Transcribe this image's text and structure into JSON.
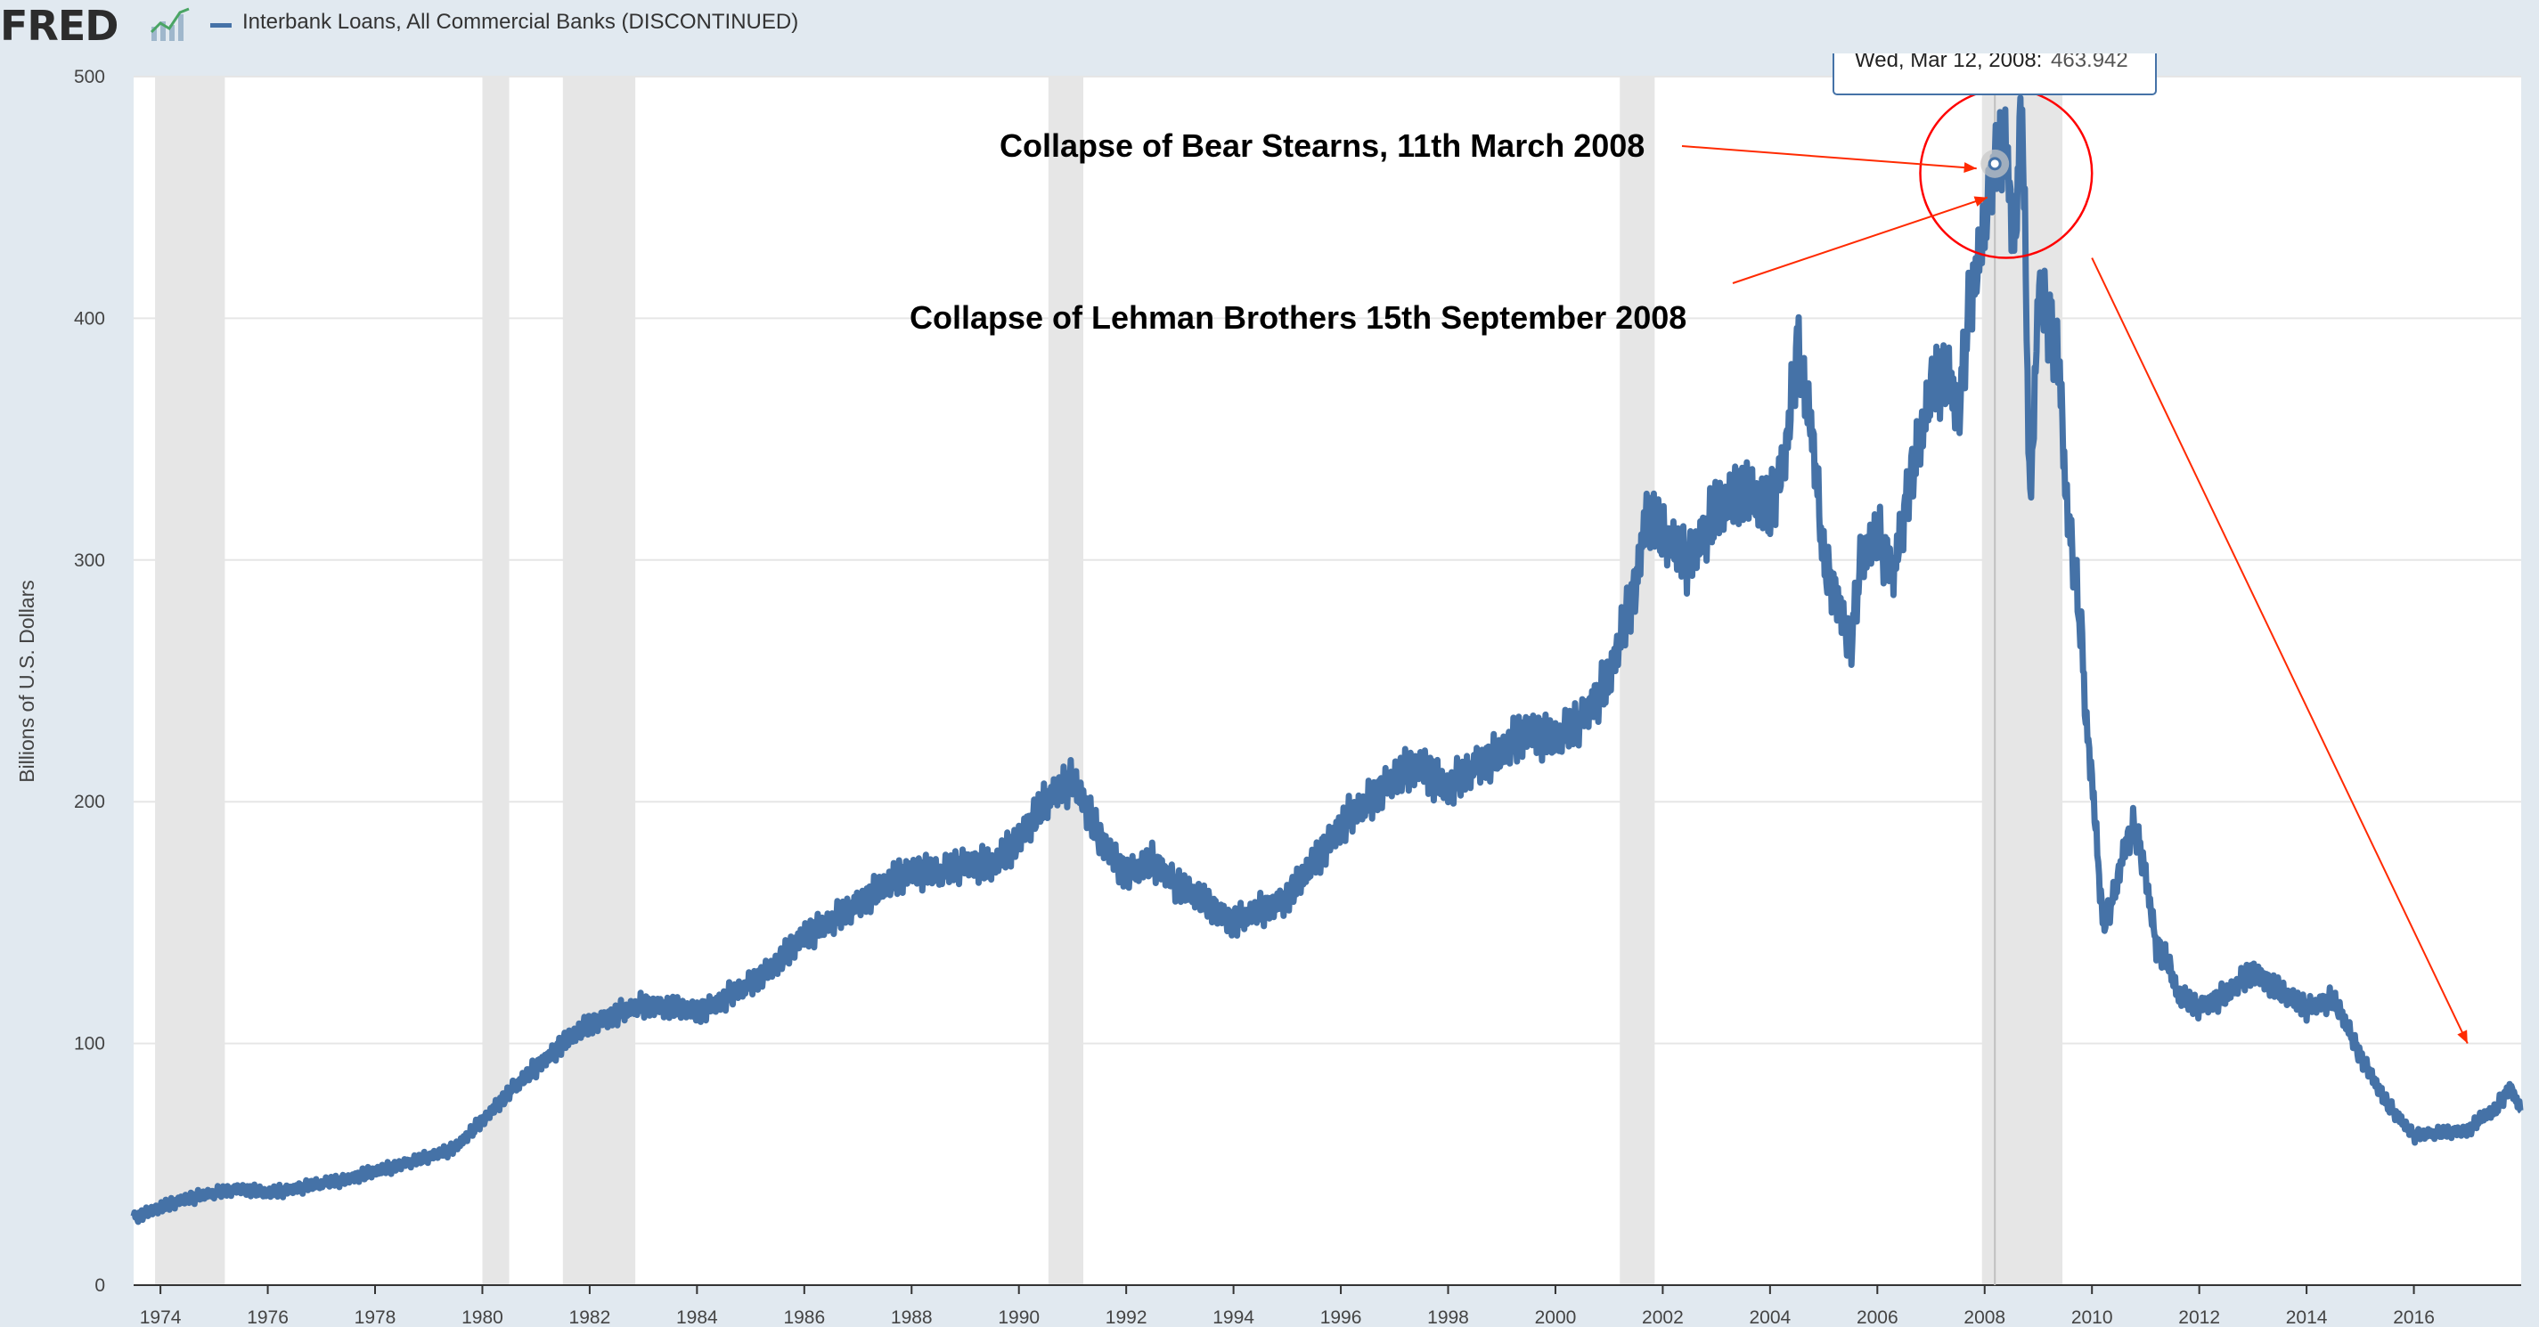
{
  "header": {
    "logo_text": "FRED",
    "series_title": "Interbank Loans, All Commercial Banks (DISCONTINUED)",
    "series_color": "#4572a7"
  },
  "chart_data": {
    "type": "line",
    "title": "Interbank Loans, All Commercial Banks (DISCONTINUED)",
    "xlabel": "",
    "ylabel": "Billions of U.S. Dollars",
    "xlim": [
      1973.5,
      2018.0
    ],
    "ylim": [
      0,
      500
    ],
    "grid": true,
    "y_ticks": [
      0,
      100,
      200,
      300,
      400,
      500
    ],
    "x_ticks": [
      "1974",
      "1976",
      "1978",
      "1980",
      "1982",
      "1984",
      "1986",
      "1988",
      "1990",
      "1992",
      "1994",
      "1996",
      "1998",
      "2000",
      "2002",
      "2004",
      "2006",
      "2008",
      "2010",
      "2012",
      "2014",
      "2016"
    ],
    "recessions": [
      [
        1973.9,
        1975.2
      ],
      [
        1980.0,
        1980.5
      ],
      [
        1981.5,
        1982.85
      ],
      [
        1990.55,
        1991.2
      ],
      [
        2001.2,
        2001.85
      ],
      [
        2007.95,
        2009.45
      ]
    ],
    "series": [
      {
        "name": "Interbank Loans, All Commercial Banks",
        "color": "#4572a7",
        "x": [
          1973.5,
          1974.0,
          1974.5,
          1975.0,
          1975.5,
          1976.0,
          1976.5,
          1977.0,
          1977.5,
          1978.0,
          1978.5,
          1979.0,
          1979.5,
          1980.0,
          1980.5,
          1981.0,
          1981.5,
          1982.0,
          1982.5,
          1983.0,
          1983.5,
          1984.0,
          1984.5,
          1985.0,
          1985.5,
          1986.0,
          1986.5,
          1987.0,
          1987.5,
          1988.0,
          1988.5,
          1989.0,
          1989.5,
          1990.0,
          1990.5,
          1991.0,
          1991.5,
          1992.0,
          1992.5,
          1993.0,
          1993.5,
          1994.0,
          1994.5,
          1995.0,
          1995.5,
          1996.0,
          1996.5,
          1997.0,
          1997.5,
          1998.0,
          1998.5,
          1999.0,
          1999.5,
          2000.0,
          2000.5,
          2001.0,
          2001.3,
          2001.5,
          2001.7,
          2002.0,
          2002.5,
          2003.0,
          2003.5,
          2004.0,
          2004.3,
          2004.5,
          2004.8,
          2005.0,
          2005.3,
          2005.5,
          2005.7,
          2006.0,
          2006.3,
          2006.5,
          2006.7,
          2007.0,
          2007.3,
          2007.5,
          2007.7,
          2008.0,
          2008.19,
          2008.4,
          2008.55,
          2008.7,
          2008.85,
          2009.0,
          2009.2,
          2009.4,
          2009.5,
          2009.65,
          2009.8,
          2009.9,
          2010.0,
          2010.2,
          2010.4,
          2010.6,
          2010.8,
          2011.0,
          2011.2,
          2011.4,
          2011.6,
          2012.0,
          2012.5,
          2013.0,
          2013.3,
          2013.6,
          2014.0,
          2014.5,
          2014.7,
          2015.0,
          2015.5,
          2016.0,
          2016.5,
          2017.0,
          2017.3,
          2017.5,
          2017.8,
          2018.0
        ],
        "values": [
          28,
          32,
          36,
          38,
          40,
          38,
          40,
          42,
          44,
          47,
          50,
          53,
          57,
          68,
          80,
          90,
          100,
          108,
          112,
          116,
          115,
          113,
          118,
          125,
          133,
          145,
          150,
          158,
          165,
          172,
          170,
          175,
          173,
          185,
          200,
          210,
          185,
          170,
          175,
          165,
          158,
          150,
          155,
          160,
          175,
          190,
          200,
          210,
          215,
          205,
          215,
          220,
          230,
          225,
          235,
          250,
          275,
          290,
          320,
          310,
          300,
          320,
          330,
          320,
          345,
          390,
          350,
          300,
          280,
          265,
          300,
          310,
          295,
          320,
          340,
          370,
          380,
          360,
          400,
          440,
          463.942,
          470,
          430,
          490,
          320,
          410,
          400,
          380,
          330,
          300,
          270,
          230,
          210,
          150,
          160,
          180,
          190,
          170,
          140,
          135,
          120,
          115,
          120,
          130,
          125,
          120,
          115,
          118,
          110,
          95,
          75,
          62,
          63,
          64,
          70,
          72,
          82,
          72
        ]
      }
    ],
    "tooltip": {
      "date": "Wed, Mar 12, 2008:",
      "value": "463.942",
      "x": 2008.19,
      "y": 463.942
    },
    "annotations": [
      {
        "text": "Collapse of Bear Stearns, 11th March 2008",
        "arrow_to": [
          2007.85,
          462
        ]
      },
      {
        "text": "Collapse of Lehman Brothers 15th September 2008",
        "arrow_to": [
          2008.05,
          450
        ]
      },
      {
        "text": "",
        "arrow_from": [
          2010.0,
          425
        ],
        "arrow_to": [
          2017.0,
          100
        ]
      }
    ],
    "highlight_circle": {
      "center": [
        2008.4,
        460
      ],
      "radius_years": 1.6,
      "radius_value": 35,
      "color": "#ff0000"
    }
  }
}
